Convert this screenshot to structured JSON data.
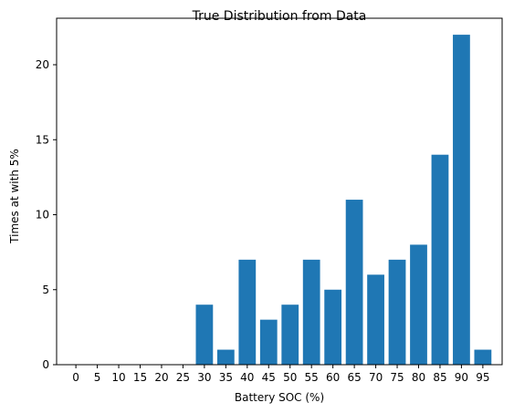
{
  "chart_data": {
    "type": "bar",
    "title": "True Distribution from Data",
    "xlabel": "Battery SOC (%)",
    "ylabel": "Times at with 5%",
    "categories": [
      "0",
      "5",
      "10",
      "15",
      "20",
      "25",
      "30",
      "35",
      "40",
      "45",
      "50",
      "55",
      "60",
      "65",
      "70",
      "75",
      "80",
      "85",
      "90",
      "95"
    ],
    "values": [
      0,
      0,
      0,
      0,
      0,
      0,
      4,
      1,
      7,
      3,
      4,
      7,
      5,
      11,
      6,
      7,
      8,
      14,
      22,
      1
    ],
    "ylim": [
      0,
      23.1
    ],
    "yticks": [
      0,
      5,
      10,
      15,
      20
    ],
    "grid": false,
    "bar_color": "#1f77b4"
  }
}
